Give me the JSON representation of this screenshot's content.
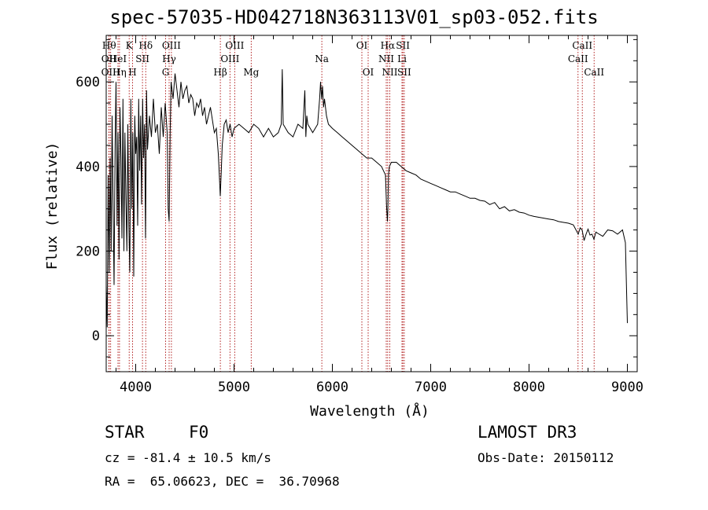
{
  "title": "spec-57035-HD042718N363113V01_sp03-052.fits",
  "info": {
    "class_label": "STAR",
    "subclass": "F0",
    "survey": "LAMOST DR3",
    "cz": "cz = -81.4 ± 10.5 km/s",
    "obs_date": "Obs-Date: 20150112",
    "coords": "RA =  65.06623, DEC =  36.70968"
  },
  "chart_data": {
    "type": "line",
    "title": "spec-57035-HD042718N363113V01_sp03-052.fits",
    "xlabel": "Wavelength (Å)",
    "ylabel": "Flux (relative)",
    "xlim": [
      3700,
      9100
    ],
    "ylim": [
      -85,
      710
    ],
    "x_ticks": [
      4000,
      5000,
      6000,
      7000,
      8000,
      9000
    ],
    "y_ticks": [
      0,
      200,
      400,
      600
    ],
    "line_color": "#000000",
    "marker_color": "#b22222",
    "series": [
      {
        "name": "flux",
        "x": [
          3700,
          3710,
          3720,
          3730,
          3740,
          3750,
          3760,
          3770,
          3780,
          3790,
          3800,
          3810,
          3820,
          3830,
          3840,
          3850,
          3860,
          3870,
          3880,
          3890,
          3900,
          3910,
          3920,
          3930,
          3940,
          3950,
          3960,
          3970,
          3980,
          3990,
          4000,
          4010,
          4020,
          4030,
          4040,
          4050,
          4060,
          4070,
          4080,
          4090,
          4100,
          4110,
          4120,
          4140,
          4160,
          4180,
          4200,
          4220,
          4240,
          4260,
          4280,
          4300,
          4320,
          4330,
          4340,
          4350,
          4360,
          4380,
          4400,
          4420,
          4440,
          4460,
          4480,
          4500,
          4520,
          4540,
          4560,
          4580,
          4600,
          4620,
          4640,
          4660,
          4680,
          4700,
          4720,
          4740,
          4760,
          4780,
          4800,
          4820,
          4840,
          4850,
          4860,
          4870,
          4880,
          4900,
          4920,
          4940,
          4960,
          4980,
          5000,
          5050,
          5100,
          5150,
          5200,
          5250,
          5300,
          5350,
          5400,
          5450,
          5480,
          5490,
          5500,
          5550,
          5600,
          5650,
          5700,
          5720,
          5730,
          5740,
          5750,
          5800,
          5850,
          5870,
          5880,
          5890,
          5900,
          5910,
          5920,
          5940,
          5960,
          6000,
          6050,
          6100,
          6150,
          6200,
          6250,
          6300,
          6350,
          6400,
          6450,
          6500,
          6520,
          6540,
          6550,
          6560,
          6565,
          6570,
          6580,
          6600,
          6650,
          6700,
          6750,
          6800,
          6850,
          6900,
          6950,
          7000,
          7050,
          7100,
          7150,
          7200,
          7250,
          7300,
          7350,
          7400,
          7450,
          7500,
          7550,
          7600,
          7650,
          7700,
          7750,
          7800,
          7850,
          7900,
          7950,
          8000,
          8050,
          8100,
          8150,
          8200,
          8250,
          8300,
          8350,
          8400,
          8450,
          8500,
          8520,
          8540,
          8560,
          8580,
          8600,
          8620,
          8640,
          8660,
          8680,
          8700,
          8750,
          8800,
          8850,
          8900,
          8950,
          8980,
          8990,
          9000
        ],
        "y": [
          120,
          20,
          380,
          150,
          420,
          200,
          520,
          300,
          120,
          450,
          600,
          260,
          480,
          180,
          540,
          420,
          230,
          560,
          200,
          480,
          330,
          200,
          500,
          260,
          150,
          560,
          300,
          480,
          140,
          520,
          430,
          470,
          260,
          560,
          390,
          520,
          310,
          560,
          420,
          500,
          230,
          580,
          440,
          520,
          470,
          560,
          480,
          500,
          430,
          540,
          470,
          550,
          480,
          300,
          270,
          480,
          600,
          560,
          620,
          580,
          540,
          600,
          560,
          580,
          590,
          550,
          570,
          560,
          520,
          550,
          540,
          560,
          520,
          540,
          500,
          520,
          540,
          510,
          480,
          490,
          430,
          380,
          330,
          390,
          450,
          500,
          510,
          480,
          500,
          470,
          490,
          500,
          490,
          480,
          500,
          490,
          470,
          490,
          470,
          480,
          500,
          630,
          500,
          480,
          470,
          500,
          490,
          580,
          470,
          520,
          500,
          480,
          500,
          560,
          600,
          560,
          590,
          540,
          560,
          520,
          500,
          490,
          480,
          470,
          460,
          450,
          440,
          430,
          420,
          420,
          410,
          400,
          390,
          380,
          310,
          270,
          300,
          380,
          400,
          410,
          410,
          400,
          390,
          385,
          380,
          370,
          365,
          360,
          355,
          350,
          345,
          340,
          340,
          335,
          330,
          325,
          325,
          320,
          318,
          310,
          315,
          300,
          305,
          295,
          298,
          292,
          290,
          285,
          282,
          280,
          278,
          276,
          274,
          270,
          268,
          266,
          262,
          240,
          255,
          250,
          225,
          240,
          252,
          238,
          240,
          228,
          245,
          242,
          235,
          250,
          248,
          240,
          250,
          220,
          120,
          30
        ]
      }
    ],
    "line_markers": [
      {
        "label": "Hθ",
        "x": 3730,
        "row": 1
      },
      {
        "label": "OII",
        "x": 3727,
        "row": 2
      },
      {
        "label": "OIII",
        "x": 3745,
        "row": 3
      },
      {
        "label": "HeI",
        "x": 3820,
        "row": 2
      },
      {
        "label": "Hη",
        "x": 3835,
        "row": 3
      },
      {
        "label": "K",
        "x": 3934,
        "row": 1
      },
      {
        "label": "H",
        "x": 3968,
        "row": 3
      },
      {
        "label": "SII",
        "x": 4069,
        "row": 2
      },
      {
        "label": "Hδ",
        "x": 4102,
        "row": 1
      },
      {
        "label": "OIII",
        "x": 4363,
        "row": 1
      },
      {
        "label": "Hγ",
        "x": 4340,
        "row": 2
      },
      {
        "label": "G",
        "x": 4304,
        "row": 3
      },
      {
        "label": "Hβ",
        "x": 4861,
        "row": 3
      },
      {
        "label": "OIII",
        "x": 5007,
        "row": 1
      },
      {
        "label": "OIII",
        "x": 4959,
        "row": 2
      },
      {
        "label": "Mg",
        "x": 5175,
        "row": 3
      },
      {
        "label": "Na",
        "x": 5893,
        "row": 2
      },
      {
        "label": "OI",
        "x": 6300,
        "row": 1
      },
      {
        "label": "OI",
        "x": 6364,
        "row": 3
      },
      {
        "label": "Hα",
        "x": 6563,
        "row": 1
      },
      {
        "label": "NII",
        "x": 6548,
        "row": 2
      },
      {
        "label": "NII",
        "x": 6584,
        "row": 3
      },
      {
        "label": "SII",
        "x": 6717,
        "row": 1
      },
      {
        "label": "Li",
        "x": 6708,
        "row": 2
      },
      {
        "label": "SII",
        "x": 6731,
        "row": 3
      },
      {
        "label": "CaII",
        "x": 8542,
        "row": 1
      },
      {
        "label": "CaII",
        "x": 8498,
        "row": 2
      },
      {
        "label": "CaII",
        "x": 8662,
        "row": 3
      }
    ]
  }
}
